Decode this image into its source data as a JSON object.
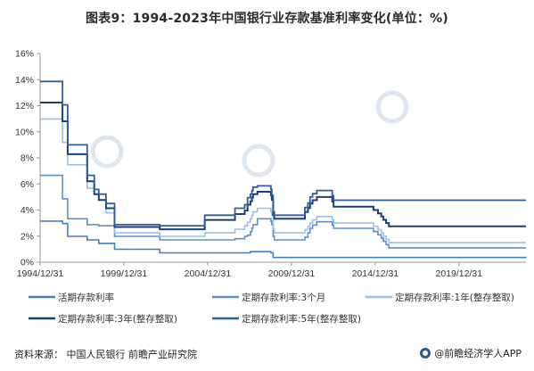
{
  "title": "图表9：1994-2023年中国银行业存款基准利率变化(单位：%)",
  "footer": {
    "source": "资料来源：  中国人民银行 前瞻产业研究院",
    "brand": "@前瞻经济学人APP"
  },
  "colors": {
    "axis": "#999999",
    "s1": "#3f7fc4",
    "s2": "#5b90d0",
    "s3": "#9fc0e6",
    "s4": "#1f3f73",
    "s5": "#2f5d9e"
  },
  "chart_data": {
    "type": "line",
    "step": true,
    "ylim": [
      0,
      16
    ],
    "yticks": [
      "0%",
      "2%",
      "4%",
      "6%",
      "8%",
      "10%",
      "12%",
      "14%",
      "16%"
    ],
    "xlim": [
      "1994-12-31",
      "2023-12-31"
    ],
    "xticks": [
      "1994/12/31",
      "1999/12/31",
      "2004/12/31",
      "2009/12/31",
      "2014/12/31",
      "2019/12/31"
    ],
    "grid": false,
    "legend_position": "bottom",
    "series": [
      {
        "name": "活期存款利率",
        "points": [
          [
            "1994-12-31",
            3.15
          ],
          [
            "1996-05-01",
            2.97
          ],
          [
            "1996-08-23",
            1.98
          ],
          [
            "1997-10-23",
            1.71
          ],
          [
            "1998-03-25",
            1.71
          ],
          [
            "1998-07-01",
            1.44
          ],
          [
            "1998-12-07",
            1.44
          ],
          [
            "1999-06-10",
            0.99
          ],
          [
            "2002-02-21",
            0.72
          ],
          [
            "2005-09-21",
            0.72
          ],
          [
            "2007-07-21",
            0.81
          ],
          [
            "2008-10-09",
            0.72
          ],
          [
            "2008-11-27",
            0.36
          ],
          [
            "2023-12-31",
            0.35
          ]
        ]
      },
      {
        "name": "定期存款利率:3个月",
        "points": [
          [
            "1994-12-31",
            6.66
          ],
          [
            "1996-05-01",
            4.86
          ],
          [
            "1996-08-23",
            3.33
          ],
          [
            "1997-10-23",
            2.88
          ],
          [
            "1998-07-01",
            2.79
          ],
          [
            "1998-12-07",
            2.79
          ],
          [
            "1999-06-10",
            1.98
          ],
          [
            "2002-02-21",
            1.71
          ],
          [
            "2004-10-29",
            1.71
          ],
          [
            "2006-08-19",
            1.8
          ],
          [
            "2007-03-18",
            1.98
          ],
          [
            "2007-05-19",
            2.07
          ],
          [
            "2007-07-21",
            2.34
          ],
          [
            "2007-08-22",
            2.61
          ],
          [
            "2007-09-15",
            2.88
          ],
          [
            "2007-12-21",
            3.33
          ],
          [
            "2008-10-09",
            3.15
          ],
          [
            "2008-10-30",
            2.88
          ],
          [
            "2008-11-27",
            1.98
          ],
          [
            "2008-12-23",
            1.71
          ],
          [
            "2010-10-20",
            1.91
          ],
          [
            "2010-12-26",
            2.25
          ],
          [
            "2011-02-09",
            2.6
          ],
          [
            "2011-04-06",
            2.85
          ],
          [
            "2011-07-07",
            3.1
          ],
          [
            "2012-06-08",
            2.85
          ],
          [
            "2012-07-06",
            2.6
          ],
          [
            "2014-11-22",
            2.35
          ],
          [
            "2015-03-01",
            2.1
          ],
          [
            "2015-05-11",
            1.85
          ],
          [
            "2015-06-28",
            1.6
          ],
          [
            "2015-08-26",
            1.35
          ],
          [
            "2015-10-24",
            1.1
          ],
          [
            "2023-12-31",
            1.1
          ]
        ]
      },
      {
        "name": "定期存款利率:1年(整存整取)",
        "points": [
          [
            "1994-12-31",
            10.98
          ],
          [
            "1996-05-01",
            9.18
          ],
          [
            "1996-08-23",
            7.47
          ],
          [
            "1997-10-23",
            5.67
          ],
          [
            "1998-03-25",
            5.22
          ],
          [
            "1998-07-01",
            4.77
          ],
          [
            "1998-12-07",
            3.78
          ],
          [
            "1999-06-10",
            2.25
          ],
          [
            "2002-02-21",
            1.98
          ],
          [
            "2004-10-29",
            2.25
          ],
          [
            "2006-08-19",
            2.52
          ],
          [
            "2007-03-18",
            2.79
          ],
          [
            "2007-05-19",
            3.06
          ],
          [
            "2007-07-21",
            3.33
          ],
          [
            "2007-08-22",
            3.6
          ],
          [
            "2007-09-15",
            3.87
          ],
          [
            "2007-12-21",
            4.14
          ],
          [
            "2008-10-09",
            3.87
          ],
          [
            "2008-10-30",
            3.6
          ],
          [
            "2008-11-27",
            2.52
          ],
          [
            "2008-12-23",
            2.25
          ],
          [
            "2010-10-20",
            2.5
          ],
          [
            "2010-12-26",
            2.75
          ],
          [
            "2011-02-09",
            3.0
          ],
          [
            "2011-04-06",
            3.25
          ],
          [
            "2011-07-07",
            3.5
          ],
          [
            "2012-06-08",
            3.25
          ],
          [
            "2012-07-06",
            3.0
          ],
          [
            "2014-11-22",
            2.75
          ],
          [
            "2015-03-01",
            2.5
          ],
          [
            "2015-05-11",
            2.25
          ],
          [
            "2015-06-28",
            2.0
          ],
          [
            "2015-08-26",
            1.75
          ],
          [
            "2015-10-24",
            1.5
          ],
          [
            "2023-12-31",
            1.5
          ]
        ]
      },
      {
        "name": "定期存款利率:3年(整存整取)",
        "points": [
          [
            "1994-12-31",
            12.24
          ],
          [
            "1996-05-01",
            10.8
          ],
          [
            "1996-08-23",
            8.28
          ],
          [
            "1997-10-23",
            6.21
          ],
          [
            "1998-03-25",
            5.22
          ],
          [
            "1998-07-01",
            4.77
          ],
          [
            "1998-12-07",
            4.14
          ],
          [
            "1999-06-10",
            2.7
          ],
          [
            "2002-02-21",
            2.52
          ],
          [
            "2004-10-29",
            3.24
          ],
          [
            "2006-08-19",
            3.69
          ],
          [
            "2007-03-18",
            3.96
          ],
          [
            "2007-05-19",
            4.41
          ],
          [
            "2007-07-21",
            4.68
          ],
          [
            "2007-08-22",
            4.95
          ],
          [
            "2007-09-15",
            5.22
          ],
          [
            "2007-12-21",
            5.4
          ],
          [
            "2008-10-09",
            5.13
          ],
          [
            "2008-10-30",
            4.77
          ],
          [
            "2008-11-27",
            3.6
          ],
          [
            "2008-12-23",
            3.33
          ],
          [
            "2010-10-20",
            3.85
          ],
          [
            "2010-12-26",
            4.15
          ],
          [
            "2011-02-09",
            4.5
          ],
          [
            "2011-04-06",
            4.75
          ],
          [
            "2011-07-07",
            5.0
          ],
          [
            "2012-06-08",
            4.65
          ],
          [
            "2012-07-06",
            4.25
          ],
          [
            "2014-11-22",
            4.0
          ],
          [
            "2015-03-01",
            3.75
          ],
          [
            "2015-05-11",
            3.5
          ],
          [
            "2015-06-28",
            3.25
          ],
          [
            "2015-08-26",
            3.0
          ],
          [
            "2015-10-24",
            2.75
          ],
          [
            "2023-12-31",
            2.75
          ]
        ]
      },
      {
        "name": "定期存款利率:5年(整存整取)",
        "points": [
          [
            "1994-12-31",
            13.86
          ],
          [
            "1996-05-01",
            12.06
          ],
          [
            "1996-08-23",
            9.0
          ],
          [
            "1997-10-23",
            6.66
          ],
          [
            "1998-03-25",
            5.58
          ],
          [
            "1998-07-01",
            5.22
          ],
          [
            "1998-12-07",
            4.5
          ],
          [
            "1999-06-10",
            2.88
          ],
          [
            "2002-02-21",
            2.79
          ],
          [
            "2004-10-29",
            3.6
          ],
          [
            "2006-08-19",
            4.14
          ],
          [
            "2007-03-18",
            4.41
          ],
          [
            "2007-05-19",
            4.95
          ],
          [
            "2007-07-21",
            5.22
          ],
          [
            "2007-08-22",
            5.49
          ],
          [
            "2007-09-15",
            5.76
          ],
          [
            "2007-12-21",
            5.85
          ],
          [
            "2008-10-09",
            5.58
          ],
          [
            "2008-10-30",
            5.13
          ],
          [
            "2008-11-27",
            3.87
          ],
          [
            "2008-12-23",
            3.6
          ],
          [
            "2010-10-20",
            4.2
          ],
          [
            "2010-12-26",
            4.55
          ],
          [
            "2011-02-09",
            5.0
          ],
          [
            "2011-04-06",
            5.25
          ],
          [
            "2011-07-07",
            5.5
          ],
          [
            "2012-06-08",
            5.1
          ],
          [
            "2012-07-06",
            4.75
          ],
          [
            "2023-12-31",
            4.75
          ]
        ]
      }
    ]
  }
}
